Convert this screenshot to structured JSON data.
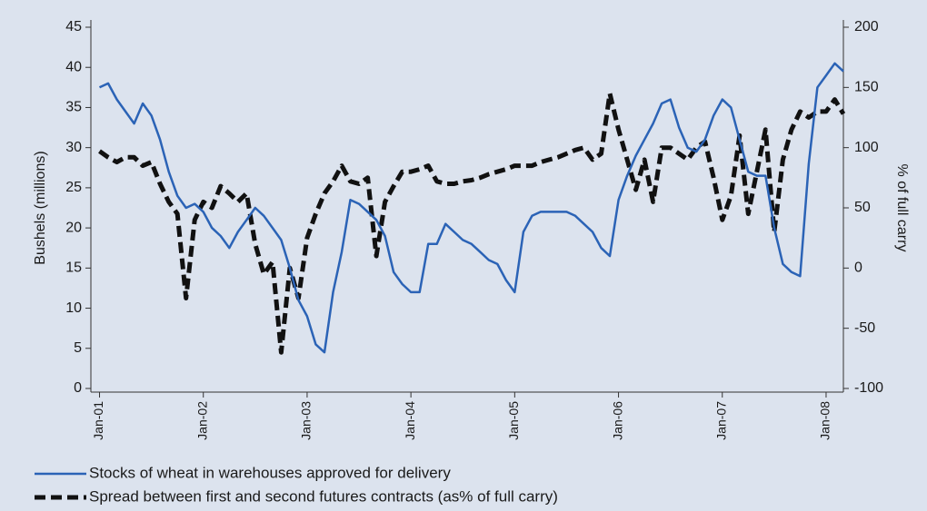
{
  "chart_data": {
    "type": "line",
    "x": [
      "2001-01",
      "2001-02",
      "2001-03",
      "2001-04",
      "2001-05",
      "2001-06",
      "2001-07",
      "2001-08",
      "2001-09",
      "2001-10",
      "2001-11",
      "2001-12",
      "2002-01",
      "2002-02",
      "2002-03",
      "2002-04",
      "2002-05",
      "2002-06",
      "2002-07",
      "2002-08",
      "2002-09",
      "2002-10",
      "2002-11",
      "2002-12",
      "2003-01",
      "2003-02",
      "2003-03",
      "2003-04",
      "2003-05",
      "2003-06",
      "2003-07",
      "2003-08",
      "2003-09",
      "2003-10",
      "2003-11",
      "2003-12",
      "2004-01",
      "2004-02",
      "2004-03",
      "2004-04",
      "2004-05",
      "2004-06",
      "2004-07",
      "2004-08",
      "2004-09",
      "2004-10",
      "2004-11",
      "2004-12",
      "2005-01",
      "2005-02",
      "2005-03",
      "2005-04",
      "2005-05",
      "2005-06",
      "2005-07",
      "2005-08",
      "2005-09",
      "2005-10",
      "2005-11",
      "2005-12",
      "2006-01",
      "2006-02",
      "2006-03",
      "2006-04",
      "2006-05",
      "2006-06",
      "2006-07",
      "2006-08",
      "2006-09",
      "2006-10",
      "2006-11",
      "2006-12",
      "2007-01",
      "2007-02",
      "2007-03",
      "2007-04",
      "2007-05",
      "2007-06",
      "2007-07",
      "2007-08",
      "2007-09",
      "2007-10",
      "2007-11",
      "2007-12",
      "2008-01",
      "2008-02",
      "2008-03"
    ],
    "series": [
      {
        "name": "Stocks of wheat in warehouses approved for delivery",
        "color": "#2b63b6",
        "axis": "y",
        "values": [
          37.5,
          38,
          36,
          34.5,
          33,
          35.5,
          34,
          31,
          27,
          24,
          22.5,
          23,
          22,
          20,
          19,
          17.5,
          19.5,
          21,
          22.5,
          21.5,
          20,
          18.5,
          15,
          11,
          9,
          5.5,
          4.5,
          12,
          17,
          23.5,
          23,
          22,
          21,
          19,
          14.5,
          13,
          12,
          12,
          18,
          18,
          20.5,
          19.5,
          18.5,
          18,
          17,
          16,
          15.5,
          13.5,
          12,
          19.5,
          21.5,
          22,
          22,
          22,
          22,
          21.5,
          20.5,
          19.5,
          17.5,
          16.5,
          23.5,
          26.5,
          29,
          31,
          33,
          35.5,
          36,
          32.5,
          30,
          29.5,
          31,
          34,
          36,
          35,
          31,
          27,
          26.5,
          26.5,
          20,
          15.5,
          14.5,
          14,
          28,
          37.5,
          39,
          40.5,
          39.5
        ]
      },
      {
        "name": "Spread between first and second futures contracts (as% of full carry)",
        "color": "#111111",
        "axis": "y2",
        "values": [
          97,
          92,
          88,
          92,
          92,
          85,
          88,
          70,
          55,
          45,
          -25,
          40,
          55,
          50,
          68,
          62,
          55,
          62,
          20,
          -5,
          5,
          -70,
          0,
          -25,
          25,
          45,
          62,
          72,
          85,
          72,
          70,
          75,
          10,
          55,
          68,
          80,
          80,
          82,
          85,
          72,
          70,
          70,
          72,
          73,
          75,
          78,
          80,
          82,
          85,
          85,
          85,
          88,
          90,
          92,
          95,
          98,
          100,
          90,
          95,
          145,
          115,
          90,
          65,
          90,
          55,
          100,
          100,
          95,
          90,
          100,
          105,
          75,
          40,
          60,
          110,
          45,
          80,
          115,
          30,
          90,
          115,
          130,
          125,
          130,
          130,
          140,
          128
        ]
      }
    ],
    "xlim": [
      "2000-12",
      "2008-03"
    ],
    "xticks": [
      {
        "value": "2001-01",
        "label": "Jan-01"
      },
      {
        "value": "2002-01",
        "label": "Jan-02"
      },
      {
        "value": "2003-01",
        "label": "Jan-03"
      },
      {
        "value": "2004-01",
        "label": "Jan-04"
      },
      {
        "value": "2005-01",
        "label": "Jan-05"
      },
      {
        "value": "2006-01",
        "label": "Jan-06"
      },
      {
        "value": "2007-01",
        "label": "Jan-07"
      },
      {
        "value": "2008-01",
        "label": "Jan-08"
      }
    ],
    "ylim": [
      0,
      45
    ],
    "yticks": [
      0,
      5,
      10,
      15,
      20,
      25,
      30,
      35,
      40,
      45
    ],
    "y2lim": [
      -100,
      200
    ],
    "y2ticks": [
      -100,
      -50,
      0,
      50,
      100,
      150,
      200
    ],
    "ylabel": "Bushels (millions)",
    "y2label": "% of full carry",
    "grid": false
  }
}
